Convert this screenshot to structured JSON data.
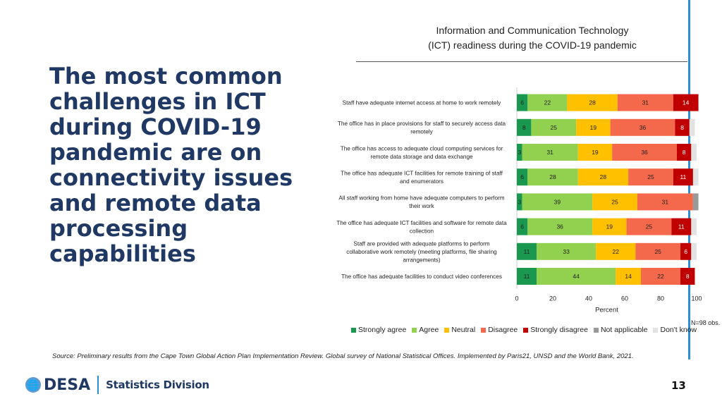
{
  "chart_title_line1": "Information and Communication Technology",
  "chart_title_line2": "(ICT) readiness during the COVID-19 pandemic",
  "headline": "The most common challenges in ICT during COVID-19 pandemic are on connectivity issues and remote data processing capabilities",
  "source": "Source: Preliminary results from the  Cape Town Global Action Plan Implementation Review. Global survey of National Statistical Offices. Implemented by Paris21, UNSD and the World Bank, 2021.",
  "n_obs": "N=98 obs.",
  "footer": {
    "org": "DESA",
    "division": "Statistics Division",
    "page": "13"
  },
  "colors": {
    "Strongly agree": "#1a9850",
    "Agree": "#92d050",
    "Neutral": "#ffc000",
    "Disagree": "#f4694b",
    "Strongly disagree": "#c00000",
    "Not applicable": "#999999",
    "Don't know": "#e2e2e2"
  },
  "chart_data": {
    "type": "bar",
    "orientation": "horizontal",
    "stacked": true,
    "xlabel": "Percent",
    "xlim": [
      0,
      100
    ],
    "xticks": [
      0,
      20,
      40,
      60,
      80,
      100
    ],
    "legend_position": "bottom",
    "categories": [
      [
        "Staff have adequate internet access at home to work remotely"
      ],
      [
        "The office has in place provisions for staff to securely access data",
        "remotely"
      ],
      [
        "The office has access to adequate cloud computing services for",
        "remote data storage and data exchange"
      ],
      [
        "The office has adequate ICT facilities for remote training of staff",
        "and enumerators"
      ],
      [
        "All staff working from home have adequate computers to perform",
        "their work"
      ],
      [
        "The office has adequate ICT facilities and software for remote data",
        "collection"
      ],
      [
        "Staff are provided with adequate platforms to perform",
        "collaborative work remotely (meeting platforms, file sharing",
        "arrangements)"
      ],
      [
        "The office has adequate facilities to conduct video conferences"
      ]
    ],
    "series": [
      {
        "name": "Strongly agree",
        "values": [
          6,
          8,
          3,
          6,
          3,
          6,
          11,
          11
        ]
      },
      {
        "name": "Agree",
        "values": [
          22,
          25,
          31,
          28,
          39,
          36,
          33,
          44
        ]
      },
      {
        "name": "Neutral",
        "values": [
          28,
          19,
          19,
          28,
          25,
          19,
          22,
          14
        ]
      },
      {
        "name": "Disagree",
        "values": [
          31,
          36,
          36,
          25,
          31,
          25,
          25,
          22
        ]
      },
      {
        "name": "Strongly disagree",
        "values": [
          14,
          8,
          8,
          11,
          0,
          11,
          6,
          8
        ]
      },
      {
        "name": "Not applicable",
        "values": [
          0,
          0,
          0,
          0,
          3,
          0,
          0,
          0
        ]
      },
      {
        "name": "Don't know",
        "values": [
          0,
          3,
          3,
          3,
          0,
          3,
          3,
          0
        ]
      }
    ]
  }
}
